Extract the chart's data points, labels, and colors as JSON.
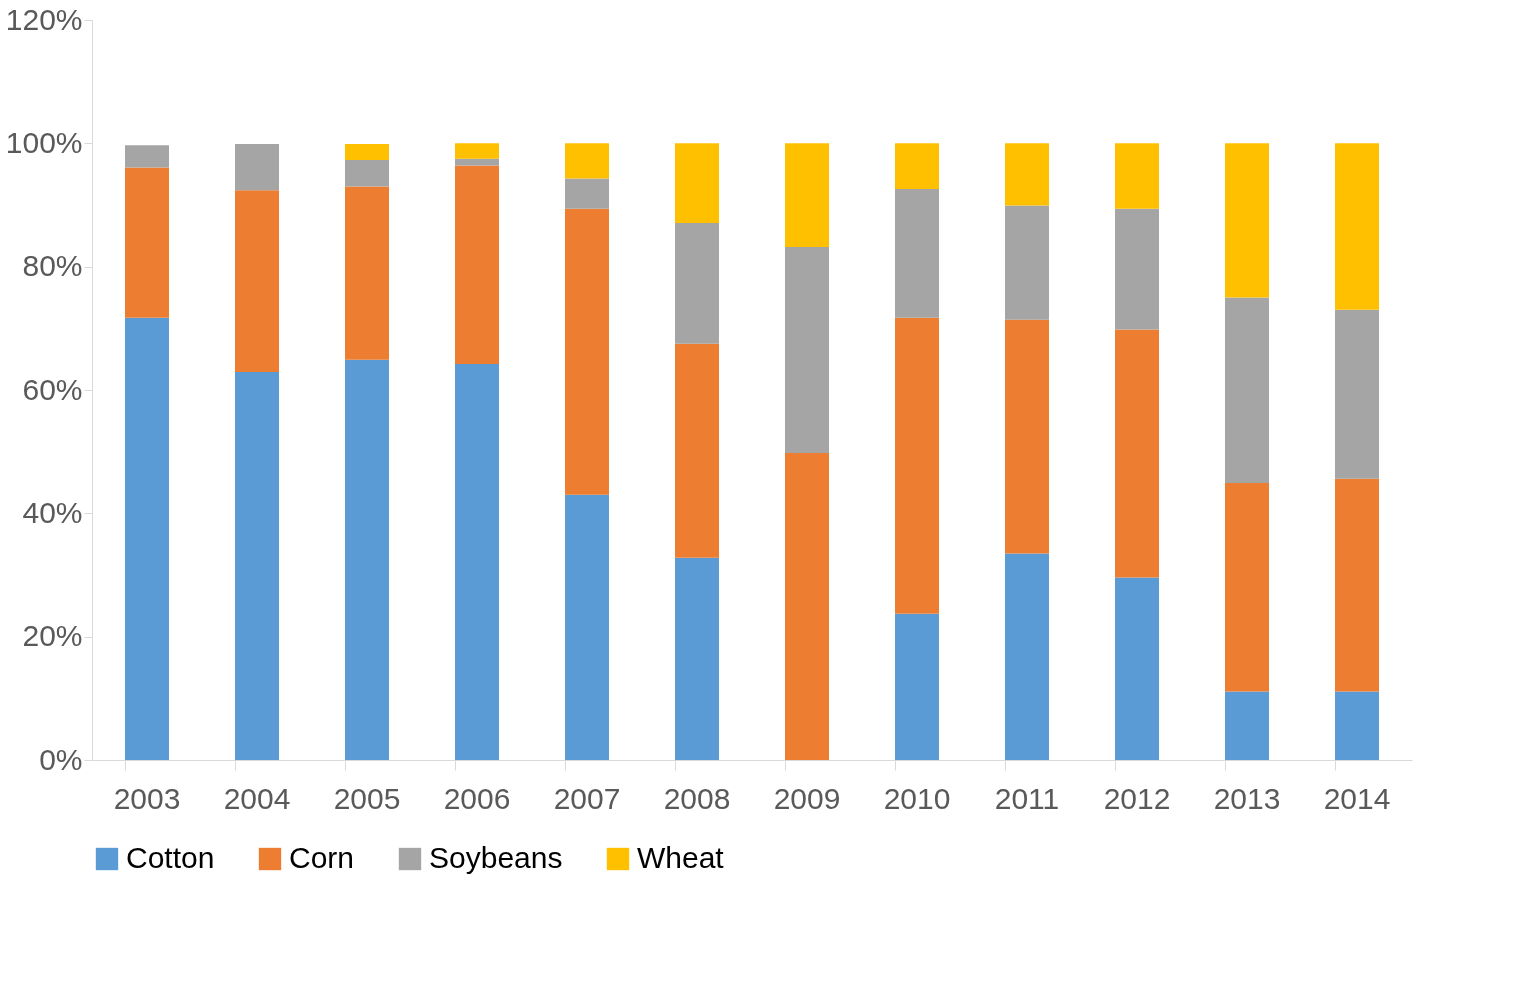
{
  "chart_data": {
    "type": "bar",
    "stacked": true,
    "categories": [
      "2003",
      "2004",
      "2005",
      "2006",
      "2007",
      "2008",
      "2009",
      "2010",
      "2011",
      "2012",
      "2013",
      "2014"
    ],
    "series": [
      {
        "name": "Cotton",
        "color": "#5b9bd5",
        "values": [
          71.7,
          62.9,
          64.9,
          64.2,
          43,
          32.8,
          0,
          23.7,
          33.5,
          29.6,
          11.1,
          11.1
        ]
      },
      {
        "name": "Corn",
        "color": "#ed7d31",
        "values": [
          24.4,
          29.5,
          28.1,
          32.2,
          46.4,
          34.7,
          49.8,
          48,
          37.9,
          40.2,
          33.8,
          34.5
        ]
      },
      {
        "name": "Soybeans",
        "color": "#a5a5a5",
        "values": [
          3.6,
          7.5,
          4.3,
          1.1,
          4.9,
          19.6,
          33.4,
          20.9,
          18.5,
          19.6,
          30.1,
          27.4
        ]
      },
      {
        "name": "Wheat",
        "color": "#ffc000",
        "values": [
          0,
          0,
          2.6,
          2.5,
          5.7,
          12.9,
          16.8,
          7.4,
          10.1,
          10.6,
          25,
          27
        ]
      }
    ],
    "ylim": [
      0,
      120
    ],
    "yticks": [
      {
        "value": 0,
        "label": "0%"
      },
      {
        "value": 20,
        "label": "20%"
      },
      {
        "value": 40,
        "label": "40%"
      },
      {
        "value": 60,
        "label": "60%"
      },
      {
        "value": 80,
        "label": "80%"
      },
      {
        "value": 100,
        "label": "100%"
      },
      {
        "value": 120,
        "label": "120%"
      }
    ],
    "grid": false,
    "legend": "bottom"
  }
}
